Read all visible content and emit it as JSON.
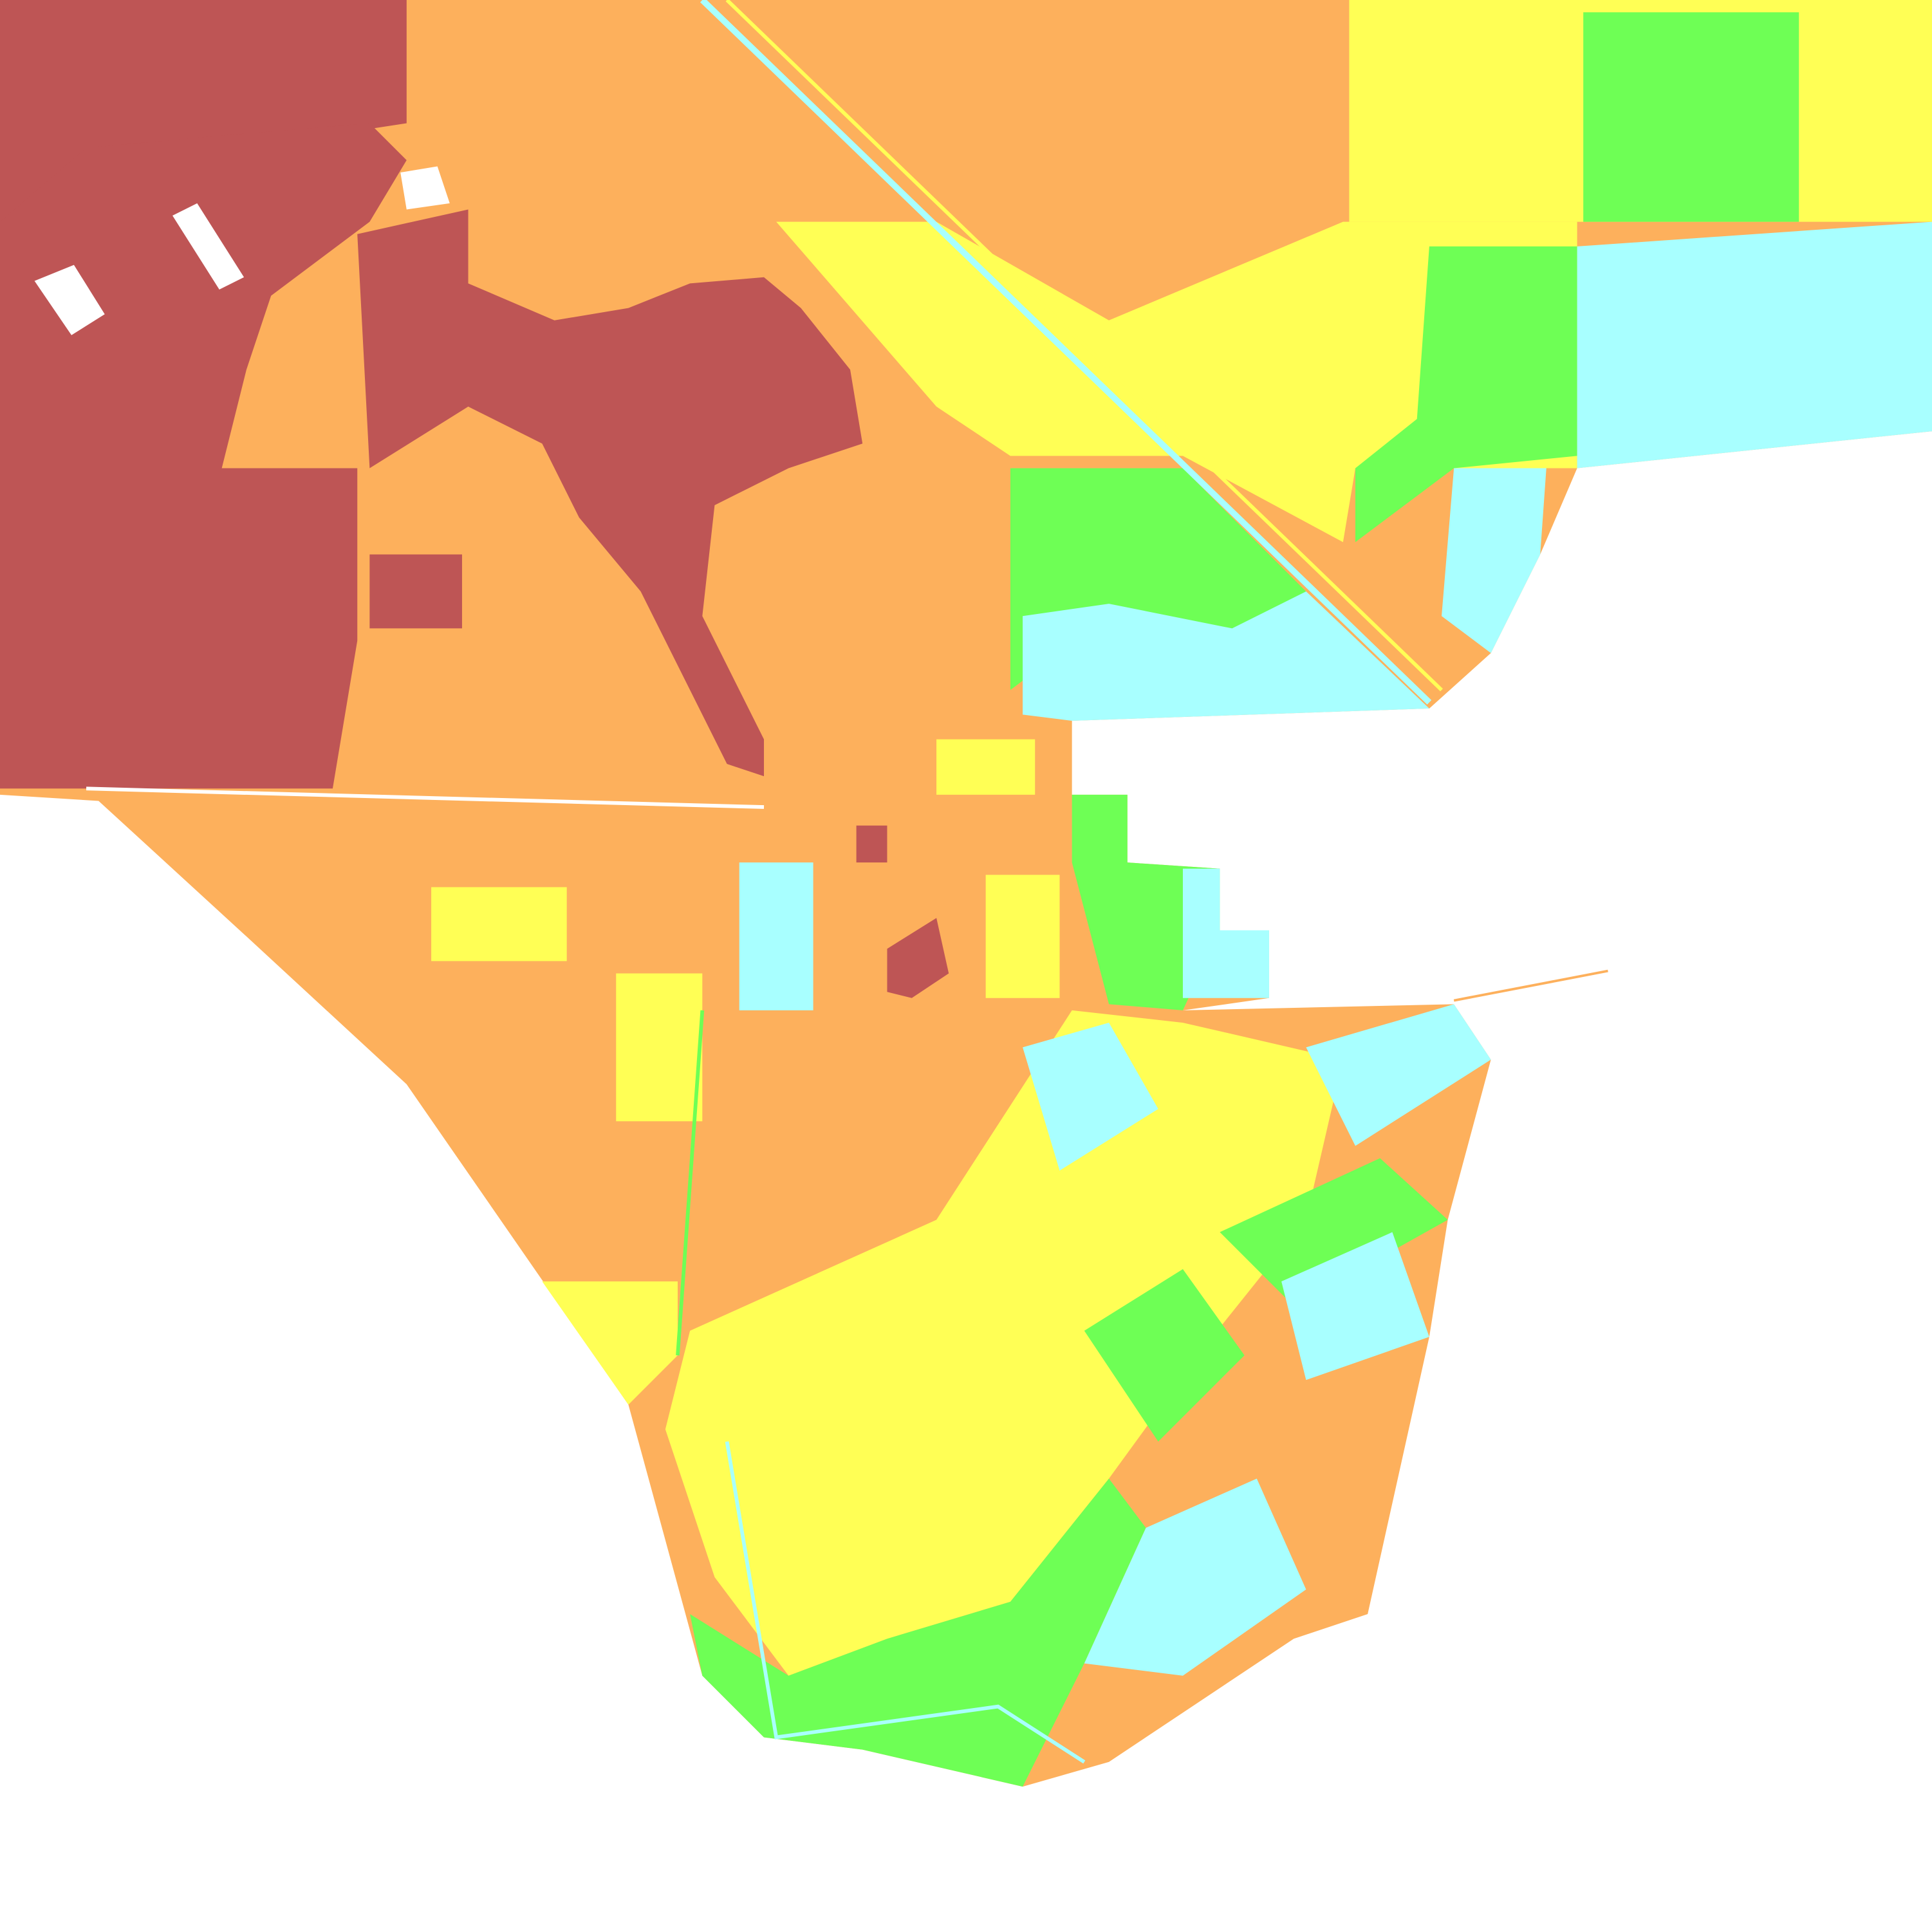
{
  "map": {
    "type": "classified land-cover raster",
    "classes": [
      {
        "id": "c1",
        "color": "#be5555"
      },
      {
        "id": "c2",
        "color": "#fdb05c"
      },
      {
        "id": "c3",
        "color": "#ffff55"
      },
      {
        "id": "c4",
        "color": "#6eff55"
      },
      {
        "id": "c5",
        "color": "#a8ffff"
      },
      {
        "id": "nodata",
        "color": "#ffffff"
      }
    ]
  }
}
